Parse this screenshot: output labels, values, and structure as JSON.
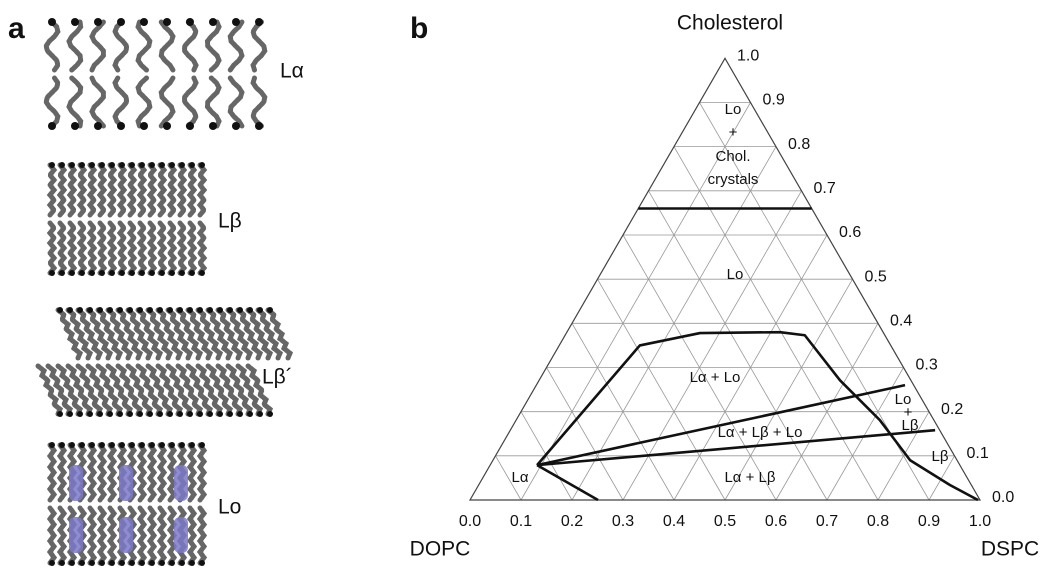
{
  "panel_a": {
    "label": "a",
    "phases": [
      "Lα",
      "Lβ",
      "Lβ´",
      "Lo"
    ]
  },
  "chart_data": {
    "type": "ternary",
    "panel_label": "b",
    "top_label": "Cholesterol",
    "left_label": "DOPC",
    "right_label": "DSPC",
    "xlim": [
      0,
      1
    ],
    "ylim": [
      0,
      1
    ],
    "xticks": [
      {
        "value": 0,
        "label": "0.0"
      },
      0.1,
      0.2,
      0.3,
      0.4,
      0.5,
      0.6,
      0.7,
      0.8,
      0.9,
      {
        "value": 1,
        "label": "1.0"
      }
    ],
    "yticks": [
      {
        "value": 0,
        "label": "0.0"
      },
      0.1,
      0.2,
      0.3,
      0.4,
      0.5,
      0.6,
      0.7,
      0.8,
      0.9,
      {
        "value": 1,
        "label": "1.0"
      }
    ],
    "grid": true,
    "color": "#111111",
    "boundaries": [
      {
        "x": [
          0,
          0.34
        ],
        "y": [
          0.66,
          0.66
        ]
      },
      {
        "x": [
          0.092,
          0.158,
          0.262,
          0.418,
          0.47,
          0.59,
          0.713,
          0.818,
          0.924,
          0.996
        ],
        "y": [
          0.079,
          0.35,
          0.378,
          0.38,
          0.373,
          0.271,
          0.181,
          0.09,
          0.034,
          0
        ]
      },
      {
        "x": [
          0.092,
          0.723
        ],
        "y": [
          0.079,
          0.26
        ]
      },
      {
        "x": [
          0.092,
          0.833
        ],
        "y": [
          0.079,
          0.158
        ]
      },
      {
        "x": [
          0.092,
          0.251
        ],
        "y": [
          0.079,
          0
        ]
      }
    ],
    "annotations": [
      "Lo",
      "+",
      "Chol.",
      "crystals",
      "Lo",
      "Lα + Lo",
      "Lo",
      "+",
      "Lβ",
      "Lα + Lβ + Lo",
      "Lα + Lβ",
      "Lβ",
      "Lα"
    ]
  }
}
